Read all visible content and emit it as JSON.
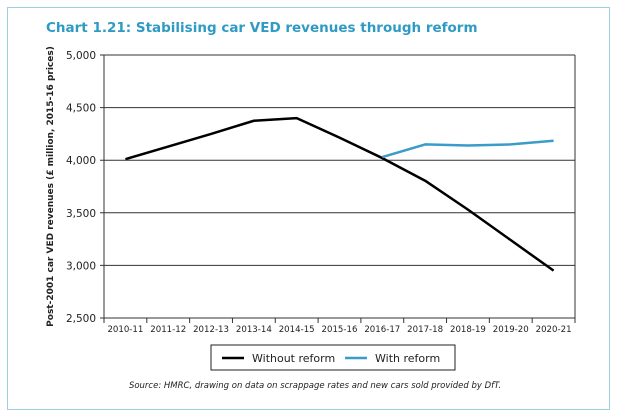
{
  "chart_data": {
    "type": "line",
    "title": "Chart 1.21: Stabilising car VED revenues through reform",
    "xlabel": "",
    "ylabel": "Post-2001 car VED revenues (£ million, 2015-16 prices)",
    "ylim": [
      2500,
      5000
    ],
    "yticks": [
      "2,500",
      "3,000",
      "3,500",
      "4,000",
      "4,500",
      "5,000"
    ],
    "ytick_values": [
      2500,
      3000,
      3500,
      4000,
      4500,
      5000
    ],
    "categories": [
      "2010-11",
      "2011-12",
      "2012-13",
      "2013-14",
      "2014-15",
      "2015-16",
      "2016-17",
      "2017-18",
      "2018-19",
      "2019-20",
      "2020-21"
    ],
    "grid": "horizontal",
    "legend_position": "bottom",
    "series": [
      {
        "name": "Without reform",
        "color": "#000000",
        "values": [
          4010,
          4130,
          4250,
          4375,
          4400,
          4215,
          4020,
          3805,
          3530,
          3240,
          2950
        ]
      },
      {
        "name": "With reform",
        "color": "#3a9cc8",
        "values": [
          null,
          null,
          null,
          null,
          null,
          null,
          4030,
          4150,
          4140,
          4150,
          4185
        ]
      }
    ],
    "source": "Source: HMRC, drawing on data on scrappage rates and new cars sold provided by DfT."
  }
}
